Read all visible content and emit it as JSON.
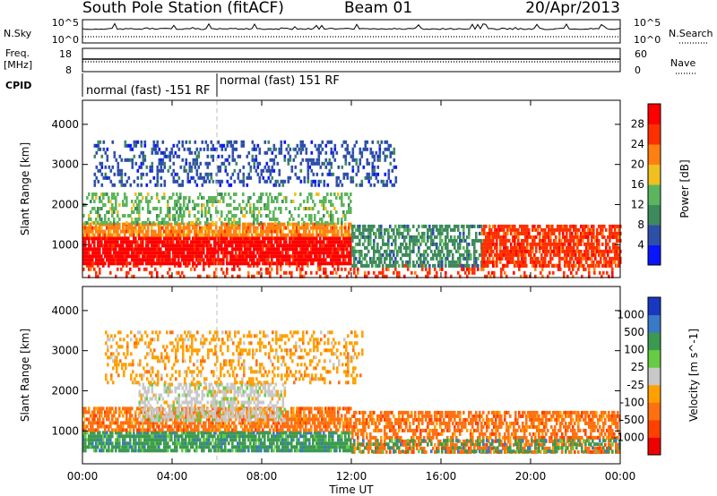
{
  "chart_data": {
    "type": "heatmap",
    "title": {
      "station": "South Pole Station (fitACF)",
      "beam": "Beam 01",
      "date": "20/Apr/2013"
    },
    "header": {
      "nsky_label": "N.Sky",
      "nsky_ticks": [
        "10^5",
        "10^0"
      ],
      "nsearch_label": "N.Search",
      "freq_label": "Freq.",
      "freq_unit": "[MHz]",
      "freq_ticks": [
        "18",
        "8"
      ],
      "nave_label": "Nave",
      "nave_ticks": [
        "60",
        "0"
      ],
      "cpid_label": "CPID",
      "cpid_segments": [
        {
          "label": "normal (fast) -151 RF",
          "start_hour": 0,
          "end_hour": 6
        },
        {
          "label": "normal (fast) 151 RF",
          "start_hour": 6,
          "end_hour": 24
        }
      ]
    },
    "x_axis": {
      "label": "Time UT",
      "range_hours": [
        0,
        24
      ],
      "ticks": [
        {
          "hour": 0,
          "label": "00:00"
        },
        {
          "hour": 4,
          "label": "04:00"
        },
        {
          "hour": 8,
          "label": "08:00"
        },
        {
          "hour": 12,
          "label": "12:00"
        },
        {
          "hour": 16,
          "label": "16:00"
        },
        {
          "hour": 20,
          "label": "20:00"
        },
        {
          "hour": 24,
          "label": "00:00"
        }
      ]
    },
    "y_axis": {
      "label": "Slant Range [km]",
      "range_km": [
        180,
        4600
      ],
      "ticks": [
        1000,
        2000,
        3000,
        4000
      ]
    },
    "panels": [
      {
        "name": "power",
        "colorbar_label": "Power [dB]",
        "colorbar_ticks": [
          "4",
          "8",
          "12",
          "16",
          "20",
          "24",
          "28"
        ],
        "colors": [
          "#0a14ff",
          "#2e4fa8",
          "#3d8a5c",
          "#5cb55c",
          "#f0c020",
          "#ff8010",
          "#ff3000",
          "#ff0000"
        ],
        "scatter_regions": [
          {
            "t": [
              0.0,
              24.0
            ],
            "r": [
              200,
              520
            ],
            "color_index": 6,
            "density": 0.25
          },
          {
            "t": [
              0.0,
              12.0
            ],
            "r": [
              520,
              1200
            ],
            "color_index": 7,
            "density": 0.9
          },
          {
            "t": [
              0.0,
              12.0
            ],
            "r": [
              1200,
              1550
            ],
            "color_index": 5,
            "density": 0.8
          },
          {
            "t": [
              0.0,
              12.0
            ],
            "r": [
              1550,
              2300
            ],
            "color_index": 3,
            "density": 0.35
          },
          {
            "t": [
              0.5,
              14.0
            ],
            "r": [
              2500,
              3600
            ],
            "color_index": 1,
            "density": 0.3
          },
          {
            "t": [
              12.0,
              17.8
            ],
            "r": [
              500,
              1500
            ],
            "color_index": 2,
            "density": 0.55
          },
          {
            "t": [
              17.8,
              24.0
            ],
            "r": [
              500,
              1500
            ],
            "color_index": 6,
            "density": 0.75
          }
        ]
      },
      {
        "name": "velocity",
        "colorbar_label": "Velocity [m s^-1]",
        "colorbar_ticks": [
          "1000",
          "500",
          "100",
          "25",
          "-25",
          "-100",
          "-500",
          "-1000"
        ],
        "colors": [
          "#1838c0",
          "#3a78c8",
          "#3c9a50",
          "#66cc44",
          "#c8c8c8",
          "#ffa000",
          "#ff7010",
          "#ff4000",
          "#ee0000"
        ],
        "scatter_regions": [
          {
            "t": [
              0.0,
              12.0
            ],
            "r": [
              500,
              1000
            ],
            "color_index": 2,
            "density": 0.8
          },
          {
            "t": [
              0.0,
              12.0
            ],
            "r": [
              1000,
              1600
            ],
            "color_index": 6,
            "density": 0.7
          },
          {
            "t": [
              2.5,
              9.0
            ],
            "r": [
              1300,
              2200
            ],
            "color_index": 4,
            "density": 0.55
          },
          {
            "t": [
              1.0,
              12.5
            ],
            "r": [
              2200,
              3500
            ],
            "color_index": 5,
            "density": 0.3
          },
          {
            "t": [
              12.0,
              24.0
            ],
            "r": [
              500,
              1500
            ],
            "color_index": 6,
            "density": 0.6
          },
          {
            "t": [
              12.0,
              24.0
            ],
            "r": [
              500,
              800
            ],
            "color_index": 2,
            "density": 0.35
          }
        ]
      }
    ]
  }
}
